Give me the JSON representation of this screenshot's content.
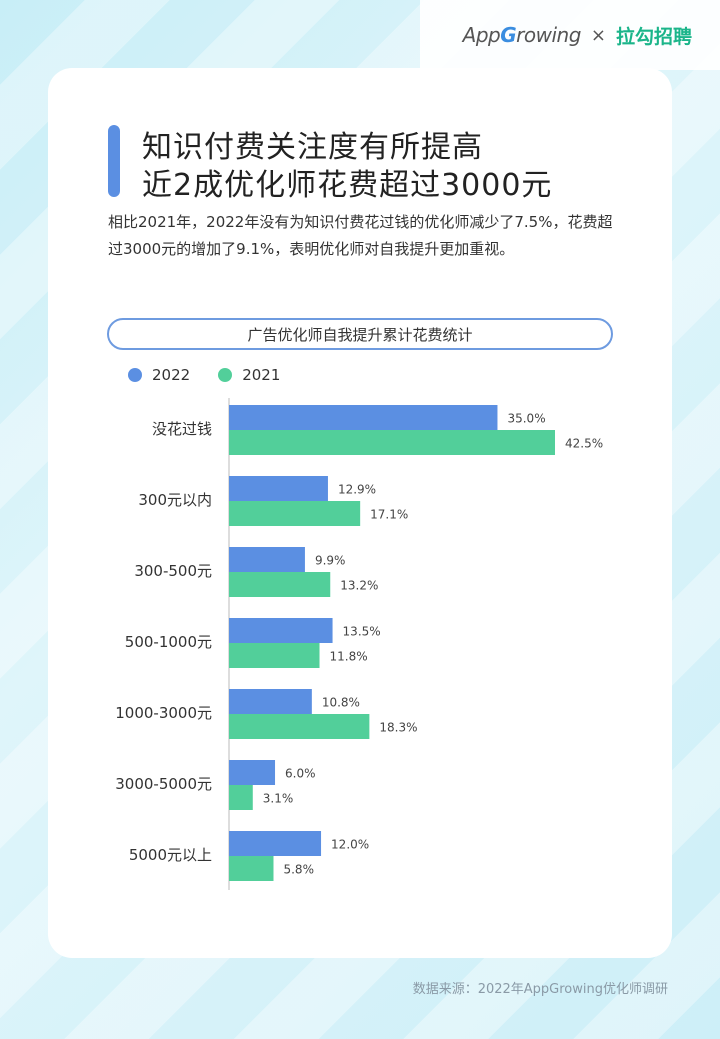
{
  "header": {
    "logo_app_prefix": "App",
    "logo_app_g": "G",
    "logo_app_suffix": "rowing",
    "logo_separator": "×",
    "logo_partner": "拉勾招聘"
  },
  "title": {
    "line1": "知识付费关注度有所提高",
    "line2": "近2成优化师花费超过3000元"
  },
  "description": "相比2021年，2022年没有为知识付费花过钱的优化师减少了7.5%，花费超过3000元的增加了9.1%，表明优化师对自我提升更加重视。",
  "source": "数据来源：2022年AppGrowing优化师调研",
  "colors": {
    "series_2022": "#5b8fe2",
    "series_2021": "#52cf9a",
    "axis": "#bbbbbb"
  },
  "chart_data": {
    "type": "bar",
    "orientation": "horizontal",
    "title": "广告优化师自我提升累计花费统计",
    "categories": [
      "没花过钱",
      "300元以内",
      "300-500元",
      "500-1000元",
      "1000-3000元",
      "3000-5000元",
      "5000元以上"
    ],
    "series": [
      {
        "name": "2022",
        "values": [
          35.0,
          12.9,
          9.9,
          13.5,
          10.8,
          6.0,
          12.0
        ],
        "labels": [
          "35.0%",
          "12.9%",
          "9.9%",
          "13.5%",
          "10.8%",
          "6.0%",
          "12.0%"
        ]
      },
      {
        "name": "2021",
        "values": [
          42.5,
          17.1,
          13.2,
          11.8,
          18.3,
          3.1,
          5.8
        ],
        "labels": [
          "42.5%",
          "17.1%",
          "13.2%",
          "11.8%",
          "18.3%",
          "3.1%",
          "5.8%"
        ]
      }
    ],
    "xlim": [
      0,
      45
    ],
    "unit": "%",
    "legend_position": "top-left",
    "grid": false
  }
}
